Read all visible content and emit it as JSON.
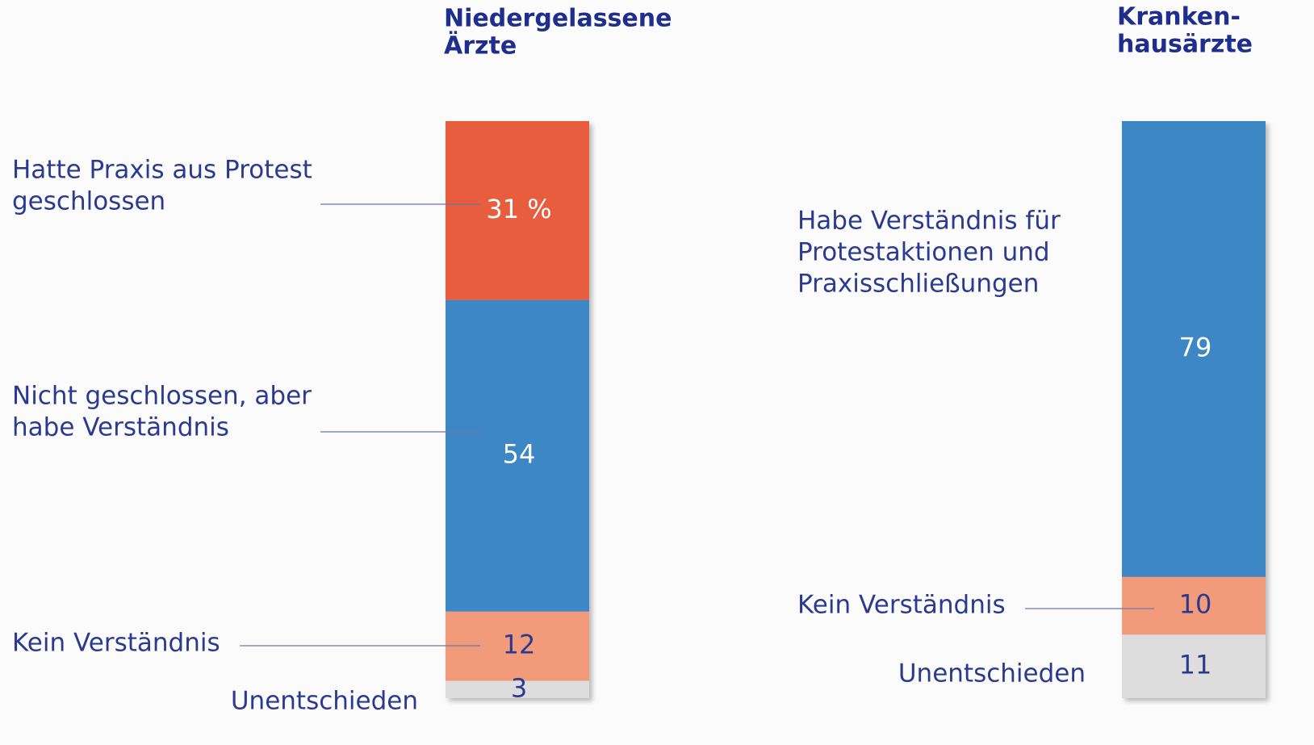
{
  "chart_data": [
    {
      "type": "bar",
      "stacked": true,
      "title": [
        "Niedergelassene",
        "Ärzte"
      ],
      "categories": [
        [
          "Hatte Praxis aus Protest",
          "geschlossen"
        ],
        [
          "Nicht geschlossen, aber",
          "habe Verständnis"
        ],
        [
          "Kein Verständnis"
        ],
        [
          "Unentschieden"
        ]
      ],
      "values": [
        31,
        54,
        12,
        3
      ],
      "value_labels": [
        "31 %",
        "54",
        "12",
        "3"
      ],
      "colors": [
        "#e85d3d",
        "#3d87c4",
        "#f29b7a",
        "#dddddd"
      ],
      "ylim": [
        0,
        100
      ]
    },
    {
      "type": "bar",
      "stacked": true,
      "title": [
        "Kranken-",
        "hausärzte"
      ],
      "categories": [
        [
          "Habe Verständnis für",
          "Protestaktionen und",
          "Praxisschließungen"
        ],
        [
          "Kein Verständnis"
        ],
        [
          "Unentschieden"
        ]
      ],
      "values": [
        79,
        10,
        11
      ],
      "value_labels": [
        "79",
        "10",
        "11"
      ],
      "colors": [
        "#3d87c4",
        "#f29b7a",
        "#dddddd"
      ],
      "ylim": [
        0,
        100
      ]
    }
  ]
}
